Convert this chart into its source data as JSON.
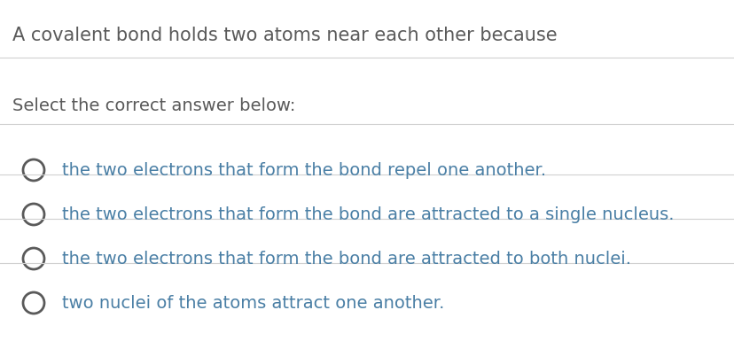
{
  "background_color": "#ffffff",
  "question": "A covalent bond holds two atoms near each other because",
  "prompt": "Select the correct answer below:",
  "options": [
    "the two electrons that form the bond repel one another.",
    "the two electrons that form the bond are attracted to a single nucleus.",
    "the two electrons that form the bond are attracted to both nuclei.",
    "two nuclei of the atoms attract one another."
  ],
  "question_color": "#5a5a5a",
  "prompt_color": "#5a5a5a",
  "option_color": "#4a7fa5",
  "circle_edge_color": "#5a5a5a",
  "line_color": "#d0d0d0",
  "question_fontsize": 15,
  "prompt_fontsize": 14,
  "option_fontsize": 14,
  "fig_width": 8.29,
  "fig_height": 3.94,
  "dpi": 100
}
